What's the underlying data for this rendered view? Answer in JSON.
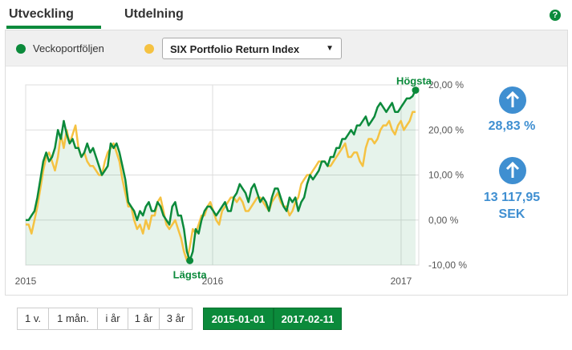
{
  "tabs": [
    {
      "label": "Utveckling",
      "active": true
    },
    {
      "label": "Utdelning",
      "active": false
    }
  ],
  "help_icon": "?",
  "legend": {
    "series1_label": "Veckoportföljen",
    "series1_color": "#0b8a3b",
    "series2_color": "#f5c242",
    "select_value": "SIX Portfolio Return Index"
  },
  "stats": {
    "return_percent": "28,83 %",
    "amount_line1": "13 117,95",
    "amount_line2": "SEK"
  },
  "range_buttons": [
    "1 v.",
    "1 mån.",
    "i år",
    "1 år",
    "3 år"
  ],
  "date_from": "2015-01-01",
  "date_to": "2017-02-11",
  "chart_data": {
    "type": "line",
    "x_tick_labels": [
      "2015",
      "2016",
      "2017"
    ],
    "y_tick_labels": [
      "20,00 %",
      "20,00 %",
      "10,00 %",
      "0,00 %",
      "-10,00 %"
    ],
    "ylim": [
      -10,
      30
    ],
    "annotations": {
      "high": "Högsta",
      "low": "Lägsta"
    },
    "series": [
      {
        "name": "Veckoportföljen",
        "color": "#0b8a3b",
        "values": [
          0,
          0,
          1,
          2,
          5,
          9,
          13,
          15,
          13,
          14,
          16,
          20,
          18,
          22,
          19,
          17,
          18,
          16,
          16,
          14,
          15,
          17,
          15,
          16,
          14,
          12,
          10,
          11,
          12,
          17,
          16,
          17,
          15,
          12,
          9,
          4,
          3,
          2,
          0,
          2,
          1,
          3,
          4,
          2,
          2,
          4,
          3,
          1,
          0,
          -1,
          3,
          4,
          1,
          1,
          -2,
          -7,
          -9,
          -7,
          -2,
          -3,
          0,
          2,
          3,
          3,
          2,
          1,
          2,
          3,
          4,
          2,
          2,
          5,
          6,
          8,
          7,
          6,
          4,
          7,
          8,
          6,
          4,
          5,
          4,
          2,
          5,
          7,
          7,
          5,
          3,
          2,
          5,
          4,
          5,
          2,
          4,
          5,
          8,
          10,
          9,
          10,
          11,
          13,
          13,
          12,
          14,
          14,
          16,
          16,
          18,
          18,
          19,
          20,
          19,
          21,
          21,
          22,
          23,
          21,
          22,
          23,
          25,
          26,
          25,
          24,
          25,
          26,
          24,
          24,
          25,
          26,
          27,
          27,
          27.5,
          28.83
        ]
      },
      {
        "name": "SIX Portfolio Return Index",
        "color": "#f5c242",
        "values": [
          -1,
          -1,
          -3,
          0,
          3,
          7,
          11,
          14,
          15,
          13,
          11,
          14,
          19,
          16,
          20,
          17,
          19,
          21,
          16,
          14,
          15,
          13,
          12,
          12,
          11,
          10,
          10,
          13,
          15,
          16,
          17,
          15,
          13,
          9,
          6,
          3,
          3,
          0,
          -2,
          -1,
          -3,
          0,
          -2,
          1,
          1,
          4,
          5,
          2,
          -1,
          -2,
          -1,
          0,
          -2,
          -4,
          -7,
          -9,
          -6,
          -2,
          -3,
          -1,
          1,
          1,
          3,
          4,
          2,
          0,
          -1,
          2,
          3,
          4,
          5,
          5,
          4,
          5,
          4,
          2,
          2,
          3,
          4,
          5,
          5,
          4,
          3,
          2,
          4,
          5,
          6,
          4,
          3,
          3,
          1,
          2,
          4,
          5,
          8,
          9,
          10,
          10,
          11,
          12,
          13,
          13,
          13,
          12,
          12,
          13,
          14,
          15,
          16,
          17,
          14,
          14,
          15,
          15,
          13,
          12,
          16,
          18,
          18,
          17,
          18,
          20,
          21,
          21,
          22,
          20,
          19,
          21,
          22,
          20,
          21,
          22,
          24,
          24
        ]
      }
    ]
  }
}
